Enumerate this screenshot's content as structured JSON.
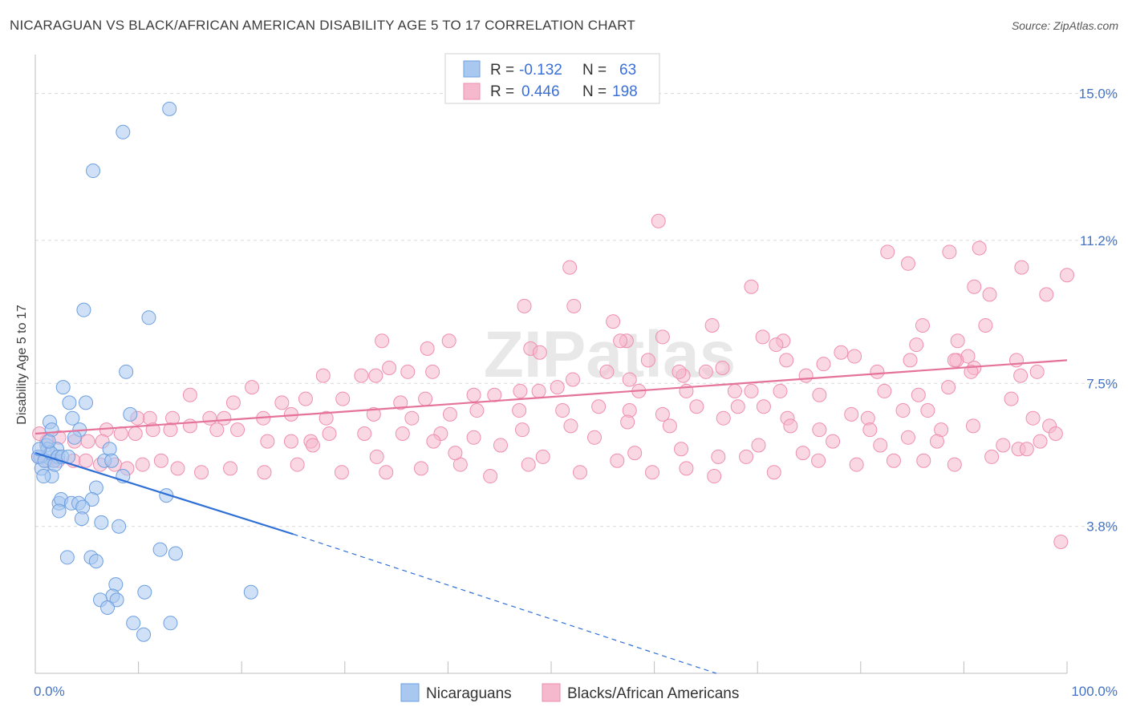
{
  "title": "NICARAGUAN VS BLACK/AFRICAN AMERICAN DISABILITY AGE 5 TO 17 CORRELATION CHART",
  "source": "Source: ZipAtlas.com",
  "watermark": "ZIPatlas",
  "legend_box": {
    "rows": [
      {
        "r_label": "R =",
        "r_value": "-0.132",
        "n_label": "N =",
        "n_value": "63"
      },
      {
        "r_label": "R =",
        "r_value": "0.446",
        "n_label": "N =",
        "n_value": "198"
      }
    ]
  },
  "bottom_legend": [
    "Nicaraguans",
    "Blacks/African Americans"
  ],
  "colors": {
    "blue_fill": "#a9c8f0",
    "blue_stroke": "#6d9fe0",
    "blue_line": "#2e6fd6",
    "pink_fill": "#f5b8cc",
    "pink_stroke": "#ee8fae",
    "pink_line": "#e5729a",
    "grid": "#d9d9d9",
    "tick_text": "#4472c4"
  },
  "chart_data": {
    "type": "scatter",
    "title": "NICARAGUAN VS BLACK/AFRICAN AMERICAN DISABILITY AGE 5 TO 17 CORRELATION CHART",
    "xlabel": "",
    "ylabel": "Disability Age 5 to 17",
    "xlim": [
      0,
      100
    ],
    "ylim": [
      0.0,
      15.8
    ],
    "x_tick_labels": [
      "0.0%",
      "100.0%"
    ],
    "y_ticks": [
      3.8,
      7.5,
      11.2,
      15.0
    ],
    "y_tick_labels": [
      "3.8%",
      "7.5%",
      "11.2%",
      "15.0%"
    ],
    "grid": "horizontal dashed",
    "legend_position": "top-center",
    "series": [
      {
        "name": "Nicaraguans",
        "r": -0.132,
        "n": 63,
        "trend": {
          "x0": 0,
          "y0": 5.7,
          "x1": 25,
          "y1": 3.6,
          "dash_to_x": 66,
          "dash_to_y": 0.0
        },
        "points": [
          [
            13,
            14.6
          ],
          [
            8.5,
            14.0
          ],
          [
            5.6,
            13.0
          ],
          [
            4.7,
            9.4
          ],
          [
            11,
            9.2
          ],
          [
            8.8,
            7.8
          ],
          [
            2.7,
            7.4
          ],
          [
            3.3,
            7.0
          ],
          [
            4.9,
            7.0
          ],
          [
            9.2,
            6.7
          ],
          [
            3.6,
            6.6
          ],
          [
            1.4,
            6.5
          ],
          [
            1.6,
            6.3
          ],
          [
            4.3,
            6.3
          ],
          [
            3.8,
            6.1
          ],
          [
            7.2,
            5.8
          ],
          [
            1.1,
            5.9
          ],
          [
            0.5,
            5.6
          ],
          [
            2.1,
            5.8
          ],
          [
            0.6,
            5.3
          ],
          [
            1.6,
            5.1
          ],
          [
            1.2,
            5.8
          ],
          [
            1.8,
            5.5
          ],
          [
            6.7,
            5.5
          ],
          [
            7.4,
            5.5
          ],
          [
            0.8,
            5.1
          ],
          [
            8.5,
            5.1
          ],
          [
            5.9,
            4.8
          ],
          [
            12.7,
            4.6
          ],
          [
            2.3,
            4.4
          ],
          [
            2.5,
            4.5
          ],
          [
            3.5,
            4.4
          ],
          [
            4.2,
            4.4
          ],
          [
            5.5,
            4.5
          ],
          [
            2.3,
            4.2
          ],
          [
            4.6,
            4.3
          ],
          [
            4.5,
            4.0
          ],
          [
            6.4,
            3.9
          ],
          [
            8.1,
            3.8
          ],
          [
            12.1,
            3.2
          ],
          [
            13.6,
            3.1
          ],
          [
            3.1,
            3.0
          ],
          [
            5.4,
            3.0
          ],
          [
            5.9,
            2.9
          ],
          [
            7.8,
            2.3
          ],
          [
            7.5,
            2.0
          ],
          [
            10.6,
            2.1
          ],
          [
            20.9,
            2.1
          ],
          [
            6.3,
            1.9
          ],
          [
            7.9,
            1.9
          ],
          [
            7.0,
            1.7
          ],
          [
            9.5,
            1.3
          ],
          [
            13.1,
            1.3
          ],
          [
            10.5,
            1.0
          ],
          [
            0.3,
            5.6
          ],
          [
            0.9,
            5.5
          ],
          [
            1.5,
            5.7
          ],
          [
            2.2,
            5.6
          ],
          [
            0.4,
            5.8
          ],
          [
            1.9,
            5.4
          ],
          [
            2.6,
            5.6
          ],
          [
            3.2,
            5.6
          ],
          [
            1.3,
            6.0
          ]
        ]
      },
      {
        "name": "Blacks/African Americans",
        "r": 0.446,
        "n": 198,
        "trend": {
          "x0": 0,
          "y0": 6.2,
          "x1": 100,
          "y1": 8.1
        },
        "points": [
          [
            60.4,
            11.7
          ],
          [
            82.6,
            10.9
          ],
          [
            91.5,
            11.0
          ],
          [
            88.6,
            10.9
          ],
          [
            84.6,
            10.6
          ],
          [
            95.6,
            10.5
          ],
          [
            51.8,
            10.5
          ],
          [
            100,
            10.3
          ],
          [
            91.0,
            10.0
          ],
          [
            69.4,
            10.0
          ],
          [
            92.5,
            9.8
          ],
          [
            98.0,
            9.8
          ],
          [
            52.2,
            9.5
          ],
          [
            47.4,
            9.5
          ],
          [
            92.1,
            9.0
          ],
          [
            56.0,
            9.1
          ],
          [
            65.6,
            9.0
          ],
          [
            86.0,
            9.0
          ],
          [
            89.4,
            8.6
          ],
          [
            60.8,
            8.7
          ],
          [
            57.3,
            8.6
          ],
          [
            40.1,
            8.6
          ],
          [
            56.7,
            8.6
          ],
          [
            33.6,
            8.6
          ],
          [
            38.0,
            8.4
          ],
          [
            48.0,
            8.4
          ],
          [
            70.5,
            8.7
          ],
          [
            72.5,
            8.6
          ],
          [
            71.8,
            8.5
          ],
          [
            85.4,
            8.5
          ],
          [
            78.1,
            8.3
          ],
          [
            48.9,
            8.3
          ],
          [
            79.4,
            8.2
          ],
          [
            90.4,
            8.2
          ],
          [
            59.4,
            8.1
          ],
          [
            72.8,
            8.1
          ],
          [
            95.1,
            8.1
          ],
          [
            89.3,
            8.1
          ],
          [
            84.8,
            8.1
          ],
          [
            76.4,
            8.0
          ],
          [
            66.6,
            7.9
          ],
          [
            62.8,
            7.7
          ],
          [
            57.6,
            7.6
          ],
          [
            52.1,
            7.6
          ],
          [
            38.5,
            7.8
          ],
          [
            34.3,
            7.9
          ],
          [
            91.0,
            7.9
          ],
          [
            89.1,
            8.1
          ],
          [
            97.1,
            7.8
          ],
          [
            90.7,
            7.8
          ],
          [
            95.5,
            7.7
          ],
          [
            81.6,
            7.8
          ],
          [
            74.7,
            7.7
          ],
          [
            65.0,
            7.8
          ],
          [
            62.4,
            7.8
          ],
          [
            55.4,
            7.8
          ],
          [
            36.1,
            7.8
          ],
          [
            33.0,
            7.7
          ],
          [
            31.6,
            7.7
          ],
          [
            27.9,
            7.7
          ],
          [
            21.0,
            7.4
          ],
          [
            15.0,
            7.2
          ],
          [
            44.5,
            7.2
          ],
          [
            48.8,
            7.3
          ],
          [
            72.2,
            7.3
          ],
          [
            76.0,
            7.2
          ],
          [
            69.4,
            7.3
          ],
          [
            67.8,
            7.3
          ],
          [
            63.1,
            7.3
          ],
          [
            58.5,
            7.3
          ],
          [
            50.6,
            7.4
          ],
          [
            47.0,
            7.3
          ],
          [
            42.5,
            7.2
          ],
          [
            37.8,
            7.1
          ],
          [
            35.4,
            7.0
          ],
          [
            29.8,
            7.1
          ],
          [
            26.2,
            7.1
          ],
          [
            23.9,
            7.0
          ],
          [
            19.2,
            7.0
          ],
          [
            82.3,
            7.3
          ],
          [
            85.6,
            7.2
          ],
          [
            88.5,
            7.4
          ],
          [
            94.6,
            7.1
          ],
          [
            70.6,
            6.9
          ],
          [
            68.1,
            6.9
          ],
          [
            64.1,
            6.9
          ],
          [
            60.8,
            6.7
          ],
          [
            57.6,
            6.8
          ],
          [
            54.6,
            6.9
          ],
          [
            51.1,
            6.8
          ],
          [
            46.9,
            6.8
          ],
          [
            42.8,
            6.8
          ],
          [
            40.2,
            6.7
          ],
          [
            36.5,
            6.6
          ],
          [
            32.8,
            6.7
          ],
          [
            28.2,
            6.6
          ],
          [
            24.8,
            6.7
          ],
          [
            22.1,
            6.6
          ],
          [
            18.3,
            6.6
          ],
          [
            16.9,
            6.6
          ],
          [
            13.3,
            6.6
          ],
          [
            11.1,
            6.6
          ],
          [
            9.9,
            6.6
          ],
          [
            72.9,
            6.6
          ],
          [
            79.1,
            6.7
          ],
          [
            80.7,
            6.6
          ],
          [
            84.1,
            6.8
          ],
          [
            86.5,
            6.8
          ],
          [
            96.7,
            6.6
          ],
          [
            98.3,
            6.4
          ],
          [
            90.9,
            6.4
          ],
          [
            87.8,
            6.3
          ],
          [
            80.9,
            6.3
          ],
          [
            76.0,
            6.3
          ],
          [
            73.2,
            6.4
          ],
          [
            66.7,
            6.6
          ],
          [
            61.5,
            6.4
          ],
          [
            57.4,
            6.5
          ],
          [
            51.9,
            6.4
          ],
          [
            47.2,
            6.3
          ],
          [
            42.5,
            6.1
          ],
          [
            39.3,
            6.2
          ],
          [
            35.6,
            6.2
          ],
          [
            31.9,
            6.2
          ],
          [
            28.5,
            6.2
          ],
          [
            26.7,
            6.0
          ],
          [
            24.8,
            6.0
          ],
          [
            22.5,
            6.0
          ],
          [
            19.6,
            6.3
          ],
          [
            17.6,
            6.3
          ],
          [
            15.0,
            6.4
          ],
          [
            13.1,
            6.3
          ],
          [
            11.4,
            6.3
          ],
          [
            9.7,
            6.2
          ],
          [
            8.3,
            6.2
          ],
          [
            6.9,
            6.3
          ],
          [
            6.5,
            6.0
          ],
          [
            5.1,
            6.0
          ],
          [
            3.8,
            6.0
          ],
          [
            2.3,
            6.1
          ],
          [
            1.1,
            6.0
          ],
          [
            0.4,
            6.2
          ],
          [
            0.3,
            5.6
          ],
          [
            1.2,
            5.5
          ],
          [
            2.2,
            5.5
          ],
          [
            3.7,
            5.5
          ],
          [
            4.9,
            5.5
          ],
          [
            6.3,
            5.4
          ],
          [
            7.7,
            5.4
          ],
          [
            8.9,
            5.3
          ],
          [
            10.4,
            5.4
          ],
          [
            12.2,
            5.5
          ],
          [
            13.8,
            5.3
          ],
          [
            16.1,
            5.2
          ],
          [
            18.9,
            5.3
          ],
          [
            22.2,
            5.2
          ],
          [
            25.4,
            5.4
          ],
          [
            29.7,
            5.2
          ],
          [
            34.0,
            5.2
          ],
          [
            37.4,
            5.3
          ],
          [
            41.2,
            5.4
          ],
          [
            44.1,
            5.1
          ],
          [
            47.8,
            5.4
          ],
          [
            52.8,
            5.2
          ],
          [
            56.4,
            5.5
          ],
          [
            59.8,
            5.2
          ],
          [
            63.1,
            5.3
          ],
          [
            65.8,
            5.1
          ],
          [
            68.9,
            5.6
          ],
          [
            71.6,
            5.2
          ],
          [
            75.9,
            5.5
          ],
          [
            79.6,
            5.4
          ],
          [
            83.2,
            5.5
          ],
          [
            86.1,
            5.5
          ],
          [
            89.1,
            5.4
          ],
          [
            92.7,
            5.6
          ],
          [
            95.3,
            5.8
          ],
          [
            97.4,
            6.0
          ],
          [
            98.9,
            6.2
          ],
          [
            99.4,
            3.4
          ],
          [
            26.9,
            5.9
          ],
          [
            38.6,
            6.0
          ],
          [
            45.1,
            5.9
          ],
          [
            54.2,
            6.1
          ],
          [
            62.6,
            5.8
          ],
          [
            70.1,
            5.9
          ],
          [
            77.3,
            6.0
          ],
          [
            81.9,
            5.9
          ],
          [
            84.6,
            6.1
          ],
          [
            87.4,
            6.0
          ],
          [
            93.8,
            5.9
          ],
          [
            96.1,
            5.8
          ],
          [
            33.1,
            5.6
          ],
          [
            40.7,
            5.7
          ],
          [
            49.2,
            5.6
          ],
          [
            58.1,
            5.7
          ],
          [
            66.2,
            5.6
          ],
          [
            74.4,
            5.7
          ]
        ]
      }
    ]
  }
}
